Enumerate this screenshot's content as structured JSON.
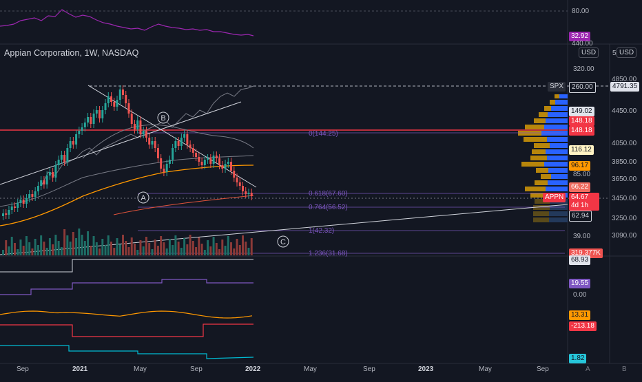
{
  "header": {
    "title": "Appian Corporation, 1W, NASDAQ"
  },
  "currency": "USD",
  "rsi": {
    "level_label": "80.00",
    "value_label": "32.92",
    "level2_label": "440.00"
  },
  "price_axis": {
    "ticks": [
      "320.00",
      "85.00",
      "39.00",
      "0.00"
    ],
    "labels": {
      "spx_tag": "SPX",
      "spx_tag_value": "260.00",
      "l149": "149.02",
      "l148a": "148.18",
      "l148b": "148.18",
      "l116": "116.12",
      "l96": "96.17",
      "l66": "66.22",
      "symbol": "APPN",
      "last": "64.67",
      "countdown": "4d 1h",
      "l62": "62.94",
      "volume": "319.377K",
      "ind1": "68.93",
      "ind2": "19.55",
      "ind3": "13.31",
      "ind4": "-213.18",
      "ind5": "1.82"
    }
  },
  "spx_axis": {
    "top_label": "5",
    "ticks": [
      "4850.00",
      "4450.00",
      "4050.00",
      "3850.00",
      "3650.00",
      "3450.00",
      "3250.00",
      "3090.00"
    ],
    "current": "4791.35"
  },
  "time_axis": {
    "labels": [
      {
        "text": "Sep",
        "bold": false
      },
      {
        "text": "2021",
        "bold": true
      },
      {
        "text": "May",
        "bold": false
      },
      {
        "text": "Sep",
        "bold": false
      },
      {
        "text": "2022",
        "bold": true
      },
      {
        "text": "May",
        "bold": false
      },
      {
        "text": "Sep",
        "bold": false
      },
      {
        "text": "2023",
        "bold": true
      },
      {
        "text": "May",
        "bold": false
      },
      {
        "text": "Sep",
        "bold": false
      }
    ],
    "corner_a": "A",
    "corner_b": "B"
  },
  "fib": {
    "l0": "0(144.25)",
    "l0618": "0.618(67.60)",
    "l0764": "0.764(56.52)",
    "l1": "1(42.32)",
    "l1236": "1.236(31.68)"
  },
  "waves": {
    "a": "A",
    "b": "B",
    "c": "C"
  },
  "colors": {
    "background": "#131722",
    "up": "#26a69a",
    "down": "#ef5350",
    "rsi": "#9c27b0",
    "red_line": "#f23645",
    "orange": "#ff9800",
    "teal": "#00bcd4",
    "purple": "#7e57c2",
    "profile_blue": "#2962ff",
    "profile_gold": "#b8860b"
  }
}
